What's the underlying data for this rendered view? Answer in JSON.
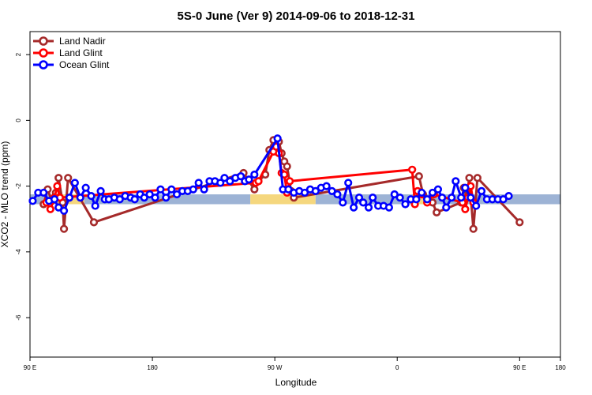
{
  "chart_data": {
    "type": "line",
    "title": "5S-0 June (Ver 9)   2014-09-06 to 2018-12-31",
    "xlabel": "Longitude",
    "ylabel": "XCO2 - MLO trend (ppm)",
    "xlim": [
      90,
      480
    ],
    "ylim": [
      -7.2,
      2.7
    ],
    "xticks": [
      {
        "value": 90,
        "label": "90 E"
      },
      {
        "value": 180,
        "label": "180"
      },
      {
        "value": 270,
        "label": "90 W"
      },
      {
        "value": 360,
        "label": "0"
      },
      {
        "value": 450,
        "label": "90 E"
      },
      {
        "value": 480,
        "label": "180"
      }
    ],
    "yticks": [
      {
        "value": 2,
        "label": "2"
      },
      {
        "value": 0,
        "label": "0"
      },
      {
        "value": -2,
        "label": "-2"
      },
      {
        "value": -4,
        "label": "-4"
      },
      {
        "value": -6,
        "label": "-6"
      }
    ],
    "band": {
      "y_low": -2.55,
      "y_high": -2.25,
      "segments": [
        {
          "x0": 90,
          "x1": 110,
          "color": "#9db3d5"
        },
        {
          "x0": 110,
          "x1": 130,
          "color": "#f5d77e"
        },
        {
          "x0": 130,
          "x1": 252,
          "color": "#9db3d5"
        },
        {
          "x0": 252,
          "x1": 300,
          "color": "#f5d77e"
        },
        {
          "x0": 300,
          "x1": 372,
          "color": "#9db3d5"
        },
        {
          "x0": 372,
          "x1": 380,
          "color": "#f5d77e"
        },
        {
          "x0": 380,
          "x1": 405,
          "color": "#9db3d5"
        },
        {
          "x0": 405,
          "x1": 480,
          "color": "#9db3d5"
        }
      ]
    },
    "series": [
      {
        "name": "Land Nadir",
        "color": "#a52a2a",
        "points": [
          [
            100,
            -2.55
          ],
          [
            103,
            -2.1
          ],
          [
            106,
            -2.45
          ],
          [
            109,
            -2.2
          ],
          [
            111,
            -1.75
          ],
          [
            114,
            -2.5
          ],
          [
            115,
            -3.3
          ],
          [
            118,
            -1.75
          ],
          [
            137,
            -3.1
          ],
          [
            247,
            -1.6
          ],
          [
            255,
            -2.1
          ],
          [
            258,
            -1.85
          ],
          [
            263,
            -1.65
          ],
          [
            266,
            -0.9
          ],
          [
            269,
            -0.6
          ],
          [
            271,
            -0.95
          ],
          [
            273,
            -0.65
          ],
          [
            275,
            -1.0
          ],
          [
            277,
            -1.25
          ],
          [
            279,
            -1.4
          ],
          [
            282,
            -2.15
          ],
          [
            284,
            -2.35
          ],
          [
            376,
            -1.7
          ],
          [
            379,
            -2.25
          ],
          [
            386,
            -2.5
          ],
          [
            389,
            -2.8
          ],
          [
            407,
            -2.5
          ],
          [
            409,
            -2.05
          ],
          [
            411,
            -2.35
          ],
          [
            413,
            -1.75
          ],
          [
            416,
            -3.3
          ],
          [
            419,
            -1.75
          ],
          [
            450,
            -3.1
          ]
        ]
      },
      {
        "name": "Land Glint",
        "color": "#ff0000",
        "points": [
          [
            102,
            -2.5
          ],
          [
            105,
            -2.7
          ],
          [
            108,
            -2.35
          ],
          [
            110,
            -2.0
          ],
          [
            112,
            -2.35
          ],
          [
            256,
            -1.9
          ],
          [
            258,
            -1.85
          ],
          [
            269,
            -0.95
          ],
          [
            271,
            -0.8
          ],
          [
            273,
            -1.0
          ],
          [
            275,
            -1.6
          ],
          [
            277,
            -1.65
          ],
          [
            279,
            -2.2
          ],
          [
            281,
            -1.85
          ],
          [
            371,
            -1.5
          ],
          [
            373,
            -2.55
          ],
          [
            375,
            -2.15
          ],
          [
            378,
            -2.25
          ],
          [
            382,
            -2.5
          ],
          [
            387,
            -2.25
          ],
          [
            408,
            -2.5
          ],
          [
            410,
            -2.7
          ],
          [
            412,
            -2.35
          ],
          [
            414,
            -2.0
          ],
          [
            416,
            -2.5
          ]
        ]
      },
      {
        "name": "Ocean Glint",
        "color": "#0000ff",
        "points": [
          [
            92,
            -2.45
          ],
          [
            96,
            -2.2
          ],
          [
            100,
            -2.2
          ],
          [
            104,
            -2.45
          ],
          [
            108,
            -2.4
          ],
          [
            111,
            -2.65
          ],
          [
            115,
            -2.75
          ],
          [
            119,
            -2.35
          ],
          [
            123,
            -1.9
          ],
          [
            127,
            -2.35
          ],
          [
            131,
            -2.05
          ],
          [
            135,
            -2.3
          ],
          [
            138,
            -2.6
          ],
          [
            142,
            -2.15
          ],
          [
            145,
            -2.4
          ],
          [
            148,
            -2.4
          ],
          [
            152,
            -2.35
          ],
          [
            156,
            -2.4
          ],
          [
            160,
            -2.3
          ],
          [
            164,
            -2.35
          ],
          [
            167,
            -2.4
          ],
          [
            171,
            -2.25
          ],
          [
            174,
            -2.35
          ],
          [
            178,
            -2.25
          ],
          [
            182,
            -2.35
          ],
          [
            186,
            -2.1
          ],
          [
            190,
            -2.35
          ],
          [
            194,
            -2.1
          ],
          [
            198,
            -2.25
          ],
          [
            202,
            -2.15
          ],
          [
            206,
            -2.15
          ],
          [
            210,
            -2.1
          ],
          [
            214,
            -1.9
          ],
          [
            218,
            -2.1
          ],
          [
            222,
            -1.85
          ],
          [
            226,
            -1.85
          ],
          [
            230,
            -1.9
          ],
          [
            233,
            -1.75
          ],
          [
            237,
            -1.85
          ],
          [
            241,
            -1.75
          ],
          [
            245,
            -1.7
          ],
          [
            248,
            -1.85
          ],
          [
            251,
            -1.8
          ],
          [
            255,
            -1.65
          ],
          [
            272,
            -0.55
          ],
          [
            276,
            -2.1
          ],
          [
            280,
            -2.1
          ],
          [
            284,
            -2.2
          ],
          [
            288,
            -2.15
          ],
          [
            292,
            -2.2
          ],
          [
            296,
            -2.1
          ],
          [
            300,
            -2.15
          ],
          [
            304,
            -2.05
          ],
          [
            308,
            -2.0
          ],
          [
            312,
            -2.15
          ],
          [
            316,
            -2.25
          ],
          [
            320,
            -2.5
          ],
          [
            324,
            -1.9
          ],
          [
            328,
            -2.65
          ],
          [
            332,
            -2.35
          ],
          [
            335,
            -2.5
          ],
          [
            339,
            -2.65
          ],
          [
            342,
            -2.35
          ],
          [
            346,
            -2.6
          ],
          [
            350,
            -2.6
          ],
          [
            354,
            -2.65
          ],
          [
            358,
            -2.25
          ],
          [
            362,
            -2.35
          ],
          [
            366,
            -2.55
          ],
          [
            370,
            -2.4
          ],
          [
            374,
            -2.4
          ],
          [
            378,
            -2.2
          ],
          [
            382,
            -2.4
          ],
          [
            386,
            -2.2
          ],
          [
            390,
            -2.1
          ],
          [
            393,
            -2.35
          ],
          [
            396,
            -2.65
          ],
          [
            400,
            -2.35
          ],
          [
            403,
            -1.85
          ],
          [
            407,
            -2.35
          ],
          [
            410,
            -2.05
          ],
          [
            414,
            -2.35
          ],
          [
            418,
            -2.6
          ],
          [
            422,
            -2.15
          ],
          [
            426,
            -2.4
          ],
          [
            430,
            -2.4
          ],
          [
            434,
            -2.4
          ],
          [
            438,
            -2.4
          ],
          [
            442,
            -2.3
          ]
        ]
      }
    ],
    "legend": "top-left"
  }
}
